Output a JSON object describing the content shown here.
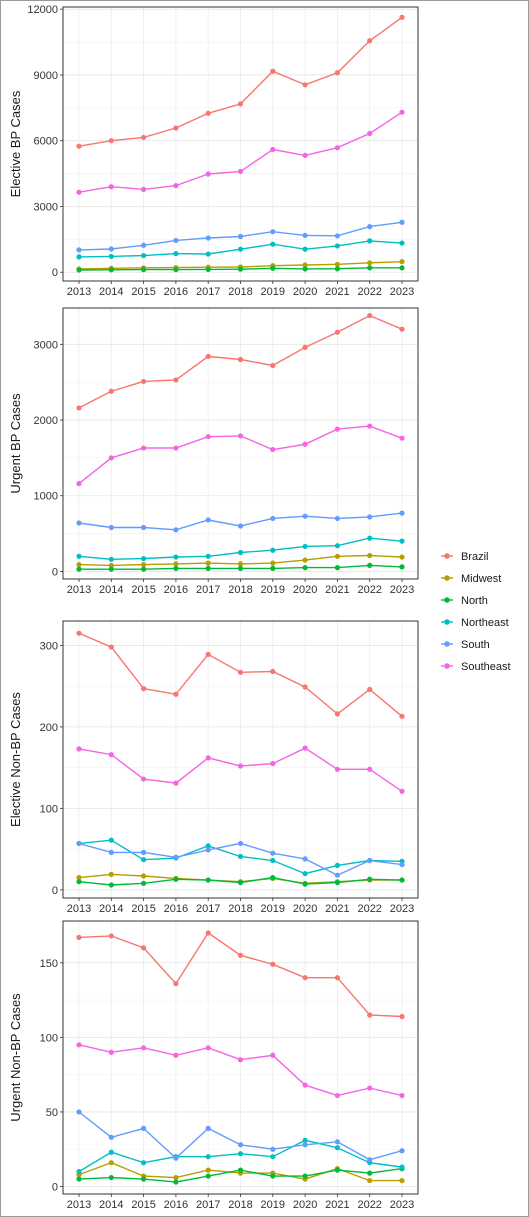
{
  "legend": [
    {
      "name": "Brazil",
      "color": "#F8766D"
    },
    {
      "name": "Midwest",
      "color": "#B79F00"
    },
    {
      "name": "North",
      "color": "#00BA38"
    },
    {
      "name": "Northeast",
      "color": "#00BFC4"
    },
    {
      "name": "South",
      "color": "#619CFF"
    },
    {
      "name": "Southeast",
      "color": "#F564E3"
    }
  ],
  "chart_data": [
    {
      "type": "line",
      "ylabel": "Elective BP Cases",
      "x": [
        2013,
        2014,
        2015,
        2016,
        2017,
        2018,
        2019,
        2020,
        2021,
        2022,
        2023
      ],
      "ylim": [
        -400,
        12100
      ],
      "yticks": [
        0,
        3000,
        6000,
        9000,
        12000
      ],
      "grid": true,
      "series": [
        {
          "name": "Brazil",
          "values": [
            5750,
            6000,
            6150,
            6580,
            7250,
            7680,
            9170,
            8550,
            9100,
            10560,
            11630
          ]
        },
        {
          "name": "Midwest",
          "values": [
            150,
            180,
            200,
            210,
            230,
            240,
            300,
            330,
            360,
            430,
            480
          ]
        },
        {
          "name": "North",
          "values": [
            100,
            110,
            120,
            120,
            130,
            140,
            180,
            150,
            160,
            200,
            200
          ]
        },
        {
          "name": "Northeast",
          "values": [
            700,
            720,
            760,
            850,
            830,
            1050,
            1280,
            1050,
            1200,
            1430,
            1330
          ]
        },
        {
          "name": "South",
          "values": [
            1020,
            1060,
            1230,
            1450,
            1560,
            1630,
            1850,
            1680,
            1660,
            2080,
            2280
          ]
        },
        {
          "name": "Southeast",
          "values": [
            3650,
            3900,
            3780,
            3950,
            4480,
            4600,
            5600,
            5330,
            5680,
            6330,
            7300
          ]
        }
      ]
    },
    {
      "type": "line",
      "ylabel": "Urgent BP Cases",
      "x": [
        2013,
        2014,
        2015,
        2016,
        2017,
        2018,
        2019,
        2020,
        2021,
        2022,
        2023
      ],
      "ylim": [
        -100,
        3480
      ],
      "yticks": [
        0,
        1000,
        2000,
        3000
      ],
      "grid": true,
      "series": [
        {
          "name": "Brazil",
          "values": [
            2160,
            2380,
            2510,
            2530,
            2840,
            2800,
            2720,
            2960,
            3160,
            3380,
            3200
          ]
        },
        {
          "name": "Midwest",
          "values": [
            90,
            80,
            90,
            100,
            110,
            100,
            110,
            150,
            200,
            210,
            190
          ]
        },
        {
          "name": "North",
          "values": [
            30,
            30,
            30,
            40,
            40,
            40,
            40,
            50,
            50,
            80,
            60
          ]
        },
        {
          "name": "Northeast",
          "values": [
            200,
            160,
            170,
            190,
            200,
            250,
            280,
            330,
            340,
            440,
            400
          ]
        },
        {
          "name": "South",
          "values": [
            640,
            580,
            580,
            550,
            680,
            600,
            700,
            730,
            700,
            720,
            770
          ]
        },
        {
          "name": "Southeast",
          "values": [
            1160,
            1500,
            1630,
            1630,
            1780,
            1790,
            1610,
            1680,
            1880,
            1920,
            1760
          ]
        }
      ]
    },
    {
      "type": "line",
      "ylabel": "Elective Non-BP Cases",
      "x": [
        2013,
        2014,
        2015,
        2016,
        2017,
        2018,
        2019,
        2020,
        2021,
        2022,
        2023
      ],
      "ylim": [
        -10,
        330
      ],
      "yticks": [
        0,
        100,
        200,
        300
      ],
      "grid": true,
      "series": [
        {
          "name": "Brazil",
          "values": [
            315,
            298,
            247,
            240,
            289,
            267,
            268,
            249,
            216,
            246,
            213
          ]
        },
        {
          "name": "Midwest",
          "values": [
            15,
            19,
            17,
            14,
            12,
            10,
            14,
            8,
            10,
            12,
            12
          ]
        },
        {
          "name": "North",
          "values": [
            10,
            6,
            8,
            13,
            12,
            9,
            15,
            7,
            9,
            13,
            12
          ]
        },
        {
          "name": "Northeast",
          "values": [
            57,
            61,
            37,
            39,
            54,
            41,
            36,
            20,
            30,
            36,
            35
          ]
        },
        {
          "name": "South",
          "values": [
            57,
            46,
            46,
            40,
            49,
            57,
            45,
            38,
            18,
            36,
            31
          ]
        },
        {
          "name": "Southeast",
          "values": [
            173,
            166,
            136,
            131,
            162,
            152,
            155,
            174,
            148,
            148,
            121
          ]
        }
      ]
    },
    {
      "type": "line",
      "ylabel": "Urgent Non-BP Cases",
      "x": [
        2013,
        2014,
        2015,
        2016,
        2017,
        2018,
        2019,
        2020,
        2021,
        2022,
        2023
      ],
      "ylim": [
        -5,
        178
      ],
      "yticks": [
        0,
        50,
        100,
        150
      ],
      "grid": true,
      "series": [
        {
          "name": "Brazil",
          "values": [
            167,
            168,
            160,
            136,
            170,
            155,
            149,
            140,
            140,
            115,
            114
          ]
        },
        {
          "name": "Midwest",
          "values": [
            8,
            16,
            7,
            6,
            11,
            9,
            9,
            5,
            12,
            4,
            4
          ]
        },
        {
          "name": "North",
          "values": [
            5,
            6,
            5,
            3,
            7,
            11,
            7,
            7,
            11,
            9,
            12
          ]
        },
        {
          "name": "Northeast",
          "values": [
            10,
            23,
            16,
            20,
            20,
            22,
            20,
            31,
            26,
            16,
            13
          ]
        },
        {
          "name": "South",
          "values": [
            50,
            33,
            39,
            19,
            39,
            28,
            25,
            28,
            30,
            18,
            24
          ]
        },
        {
          "name": "Southeast",
          "values": [
            95,
            90,
            93,
            88,
            93,
            85,
            88,
            68,
            61,
            66,
            61
          ]
        }
      ]
    }
  ]
}
